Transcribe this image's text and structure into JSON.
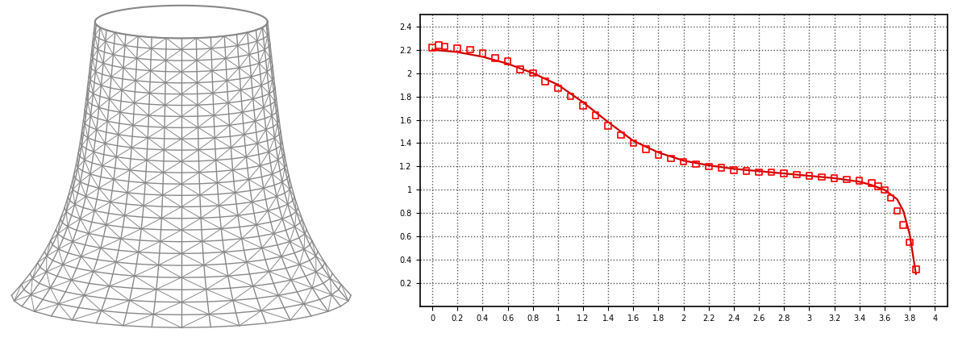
{
  "chart_data": {
    "type": "line",
    "series": [
      {
        "type": "line",
        "color": "#cc0000",
        "line_style": "solid",
        "x": [
          0,
          0.2,
          0.4,
          0.6,
          0.8,
          1.0,
          1.2,
          1.4,
          1.6,
          1.8,
          2.0,
          2.2,
          2.4,
          2.6,
          2.8,
          3.0,
          3.2,
          3.4,
          3.5,
          3.6,
          3.7,
          3.75,
          3.8,
          3.85
        ],
        "values": [
          2.2,
          2.18,
          2.14,
          2.08,
          2.0,
          1.9,
          1.75,
          1.58,
          1.42,
          1.32,
          1.25,
          1.21,
          1.18,
          1.16,
          1.14,
          1.12,
          1.1,
          1.07,
          1.04,
          1.0,
          0.92,
          0.82,
          0.62,
          0.28
        ]
      },
      {
        "type": "scatter",
        "color": "#ff0000",
        "marker": "square",
        "x": [
          0,
          0.05,
          0.1,
          0.2,
          0.3,
          0.4,
          0.5,
          0.6,
          0.7,
          0.8,
          0.9,
          1.0,
          1.1,
          1.2,
          1.3,
          1.4,
          1.5,
          1.6,
          1.7,
          1.8,
          1.9,
          2.0,
          2.1,
          2.2,
          2.3,
          2.4,
          2.5,
          2.6,
          2.7,
          2.8,
          2.9,
          3.0,
          3.1,
          3.2,
          3.3,
          3.4,
          3.5,
          3.55,
          3.6,
          3.65,
          3.7,
          3.75,
          3.8,
          3.85
        ],
        "values": [
          2.22,
          2.24,
          2.23,
          2.21,
          2.2,
          2.17,
          2.13,
          2.1,
          2.03,
          2.0,
          1.93,
          1.87,
          1.8,
          1.72,
          1.64,
          1.55,
          1.47,
          1.4,
          1.35,
          1.3,
          1.27,
          1.24,
          1.22,
          1.2,
          1.19,
          1.17,
          1.16,
          1.15,
          1.15,
          1.14,
          1.13,
          1.12,
          1.11,
          1.1,
          1.09,
          1.08,
          1.06,
          1.03,
          1.0,
          0.93,
          0.82,
          0.7,
          0.55,
          0.32
        ]
      }
    ],
    "xlim": [
      -0.1,
      4.1
    ],
    "xticks": [
      0,
      0.2,
      0.4,
      0.6,
      0.8,
      1,
      1.2,
      1.4,
      1.6,
      1.8,
      2,
      2.2,
      2.4,
      2.6,
      2.8,
      3,
      3.2,
      3.4,
      3.6,
      3.8,
      4
    ],
    "ylim": [
      0,
      2.5
    ],
    "yticks": [
      0.2,
      0.4,
      0.6,
      0.8,
      1,
      1.2,
      1.4,
      1.6,
      1.8,
      2,
      2.2,
      2.4
    ],
    "grid": true
  }
}
